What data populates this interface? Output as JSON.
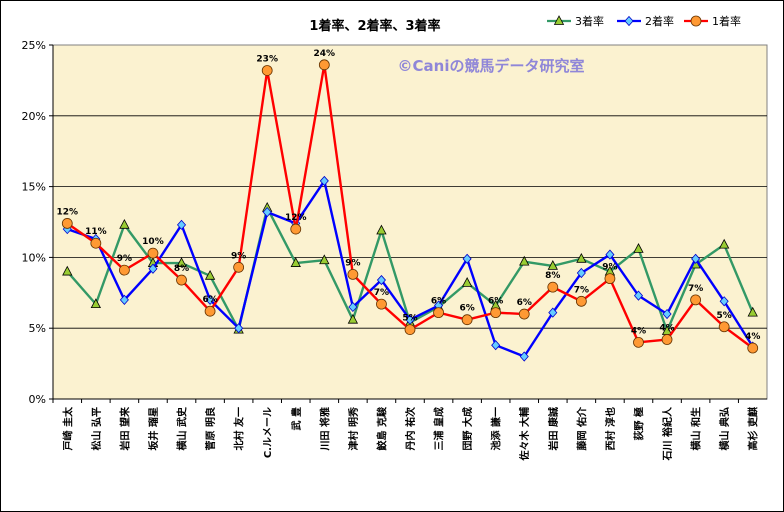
{
  "chart_data": {
    "type": "line",
    "title": "1着率、2着率、3着率",
    "watermark": "©Caniの競馬データ研究室",
    "ylabel": "",
    "xlabel": "",
    "ylim": [
      0,
      25
    ],
    "yticks": [
      "0%",
      "5%",
      "10%",
      "15%",
      "20%",
      "25%"
    ],
    "grid": "horizontal",
    "legend_position": "top-right",
    "background_color": "#fbf2d0",
    "categories": [
      "戸崎 圭太",
      "松山 弘平",
      "岩田 望来",
      "坂井 瑠星",
      "横山 武史",
      "菅原 明良",
      "北村 友一",
      "C.ルメール",
      "武 豊",
      "川田 将雅",
      "津村 明秀",
      "鮫島 克駿",
      "丹内 祐次",
      "三浦 皇成",
      "団野 大成",
      "池添 謙一",
      "佐々木 大輔",
      "岩田 康誠",
      "藤岡 佑介",
      "西村 淳也",
      "荻野 極",
      "石川 裕紀人",
      "横山 和生",
      "横山 典弘",
      "高杉 吏麒"
    ],
    "series": [
      {
        "name": "3着率",
        "color": "#339966",
        "marker": "triangle",
        "values": [
          9.0,
          6.7,
          12.3,
          9.6,
          9.6,
          8.7,
          4.9,
          13.5,
          9.6,
          9.8,
          5.6,
          11.9,
          5.4,
          6.5,
          8.2,
          6.6,
          9.7,
          9.4,
          9.9,
          9.0,
          10.6,
          4.8,
          9.5,
          10.9,
          6.1
        ]
      },
      {
        "name": "2着率",
        "color": "#0000ff",
        "marker": "diamond",
        "values": [
          12.0,
          11.3,
          7.0,
          9.2,
          12.3,
          7.0,
          5.0,
          13.2,
          12.4,
          15.4,
          6.5,
          8.4,
          5.6,
          6.6,
          9.9,
          3.8,
          3.0,
          6.1,
          8.9,
          10.2,
          7.3,
          6.0,
          9.9,
          6.9,
          3.7
        ]
      },
      {
        "name": "1着率",
        "color": "#ff0000",
        "marker": "circle",
        "values": [
          12.4,
          11.0,
          9.1,
          10.3,
          8.4,
          6.2,
          9.3,
          23.2,
          12.0,
          23.6,
          8.8,
          6.7,
          4.9,
          6.1,
          5.6,
          6.1,
          6.0,
          7.9,
          6.9,
          8.5,
          4.0,
          4.2,
          7.0,
          5.1,
          3.6
        ]
      }
    ],
    "data_labels": {
      "series": "1着率",
      "labels": [
        "12%",
        "11%",
        "9%",
        "10%",
        "8%",
        "6%",
        "9%",
        "23%",
        "12%",
        "24%",
        "9%",
        "7%",
        "5%",
        "6%",
        "6%",
        "6%",
        "6%",
        "8%",
        "7%",
        "9%",
        "4%",
        "4%",
        "7%",
        "5%",
        "4%"
      ]
    }
  }
}
